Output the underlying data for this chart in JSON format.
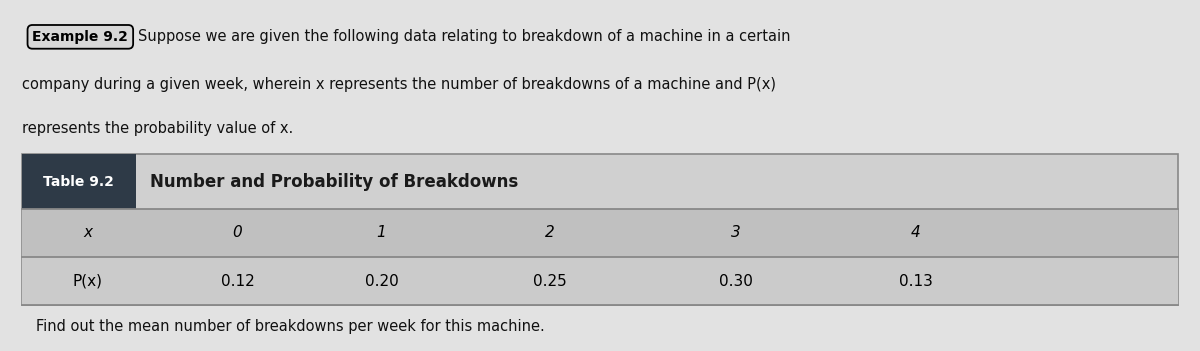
{
  "example_label": "Example 9.2",
  "intro_line1": "Suppose we are given the following data relating to breakdown of a machine in a certain",
  "intro_line2": "company during a given week, wherein x represents the number of breakdowns of a machine and P(x)",
  "intro_line3": "represents the probability value of x.",
  "table_label": "Table 9.2",
  "table_title": "Number and Probability of Breakdowns",
  "row1_label": "x",
  "row1_values": [
    "0",
    "1",
    "2",
    "3",
    "4"
  ],
  "row2_label": "P(x)",
  "row2_values": [
    "0.12",
    "0.20",
    "0.25",
    "0.30",
    "0.13"
  ],
  "footer_text": "Find out the mean number of breakdowns per week for this machine.",
  "page_bg": "#e2e2e2",
  "table_bg": "#d0d0d0",
  "table_header_bg": "#2e3a47",
  "table_row1_bg": "#c0c0c0",
  "table_row2_bg": "#cbcbcb",
  "border_color": "#888888",
  "text_color": "#111111",
  "header_text_color": "#ffffff",
  "title_color": "#1a1a1a"
}
